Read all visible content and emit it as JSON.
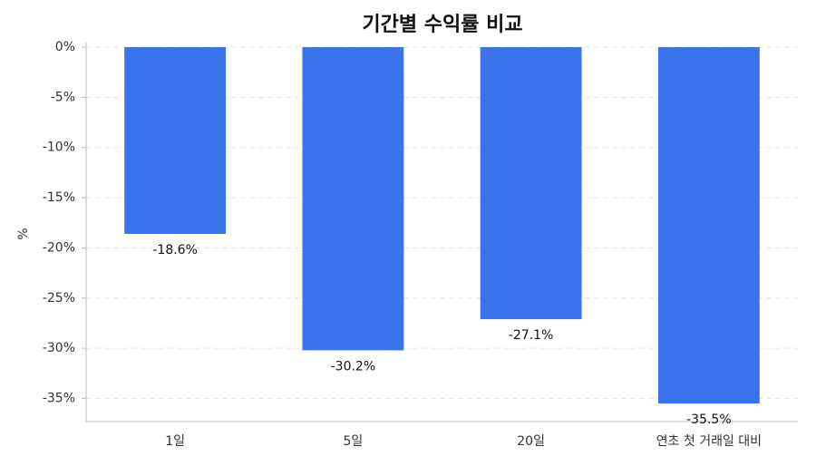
{
  "chart_data": {
    "type": "bar",
    "title": "기간별 수익률 비교",
    "y_label": "%",
    "categories": [
      "1일",
      "5일",
      "20일",
      "연초 첫 거래일 대비"
    ],
    "values": [
      -18.6,
      -30.2,
      -27.1,
      -35.5
    ],
    "value_labels": [
      "-18.6%",
      "-30.2%",
      "-27.1%",
      "-35.5%"
    ],
    "color": "#3b73ec",
    "ylim": [
      -37.3,
      0
    ],
    "yticks": [
      {
        "value": 0,
        "label": "0%"
      },
      {
        "value": -5,
        "label": "-5%"
      },
      {
        "value": -10,
        "label": "-10%"
      },
      {
        "value": -15,
        "label": "-15%"
      },
      {
        "value": -20,
        "label": "-20%"
      },
      {
        "value": -25,
        "label": "-25%"
      },
      {
        "value": -30,
        "label": "-30%"
      },
      {
        "value": -35,
        "label": "-35%"
      }
    ],
    "grid": true
  }
}
